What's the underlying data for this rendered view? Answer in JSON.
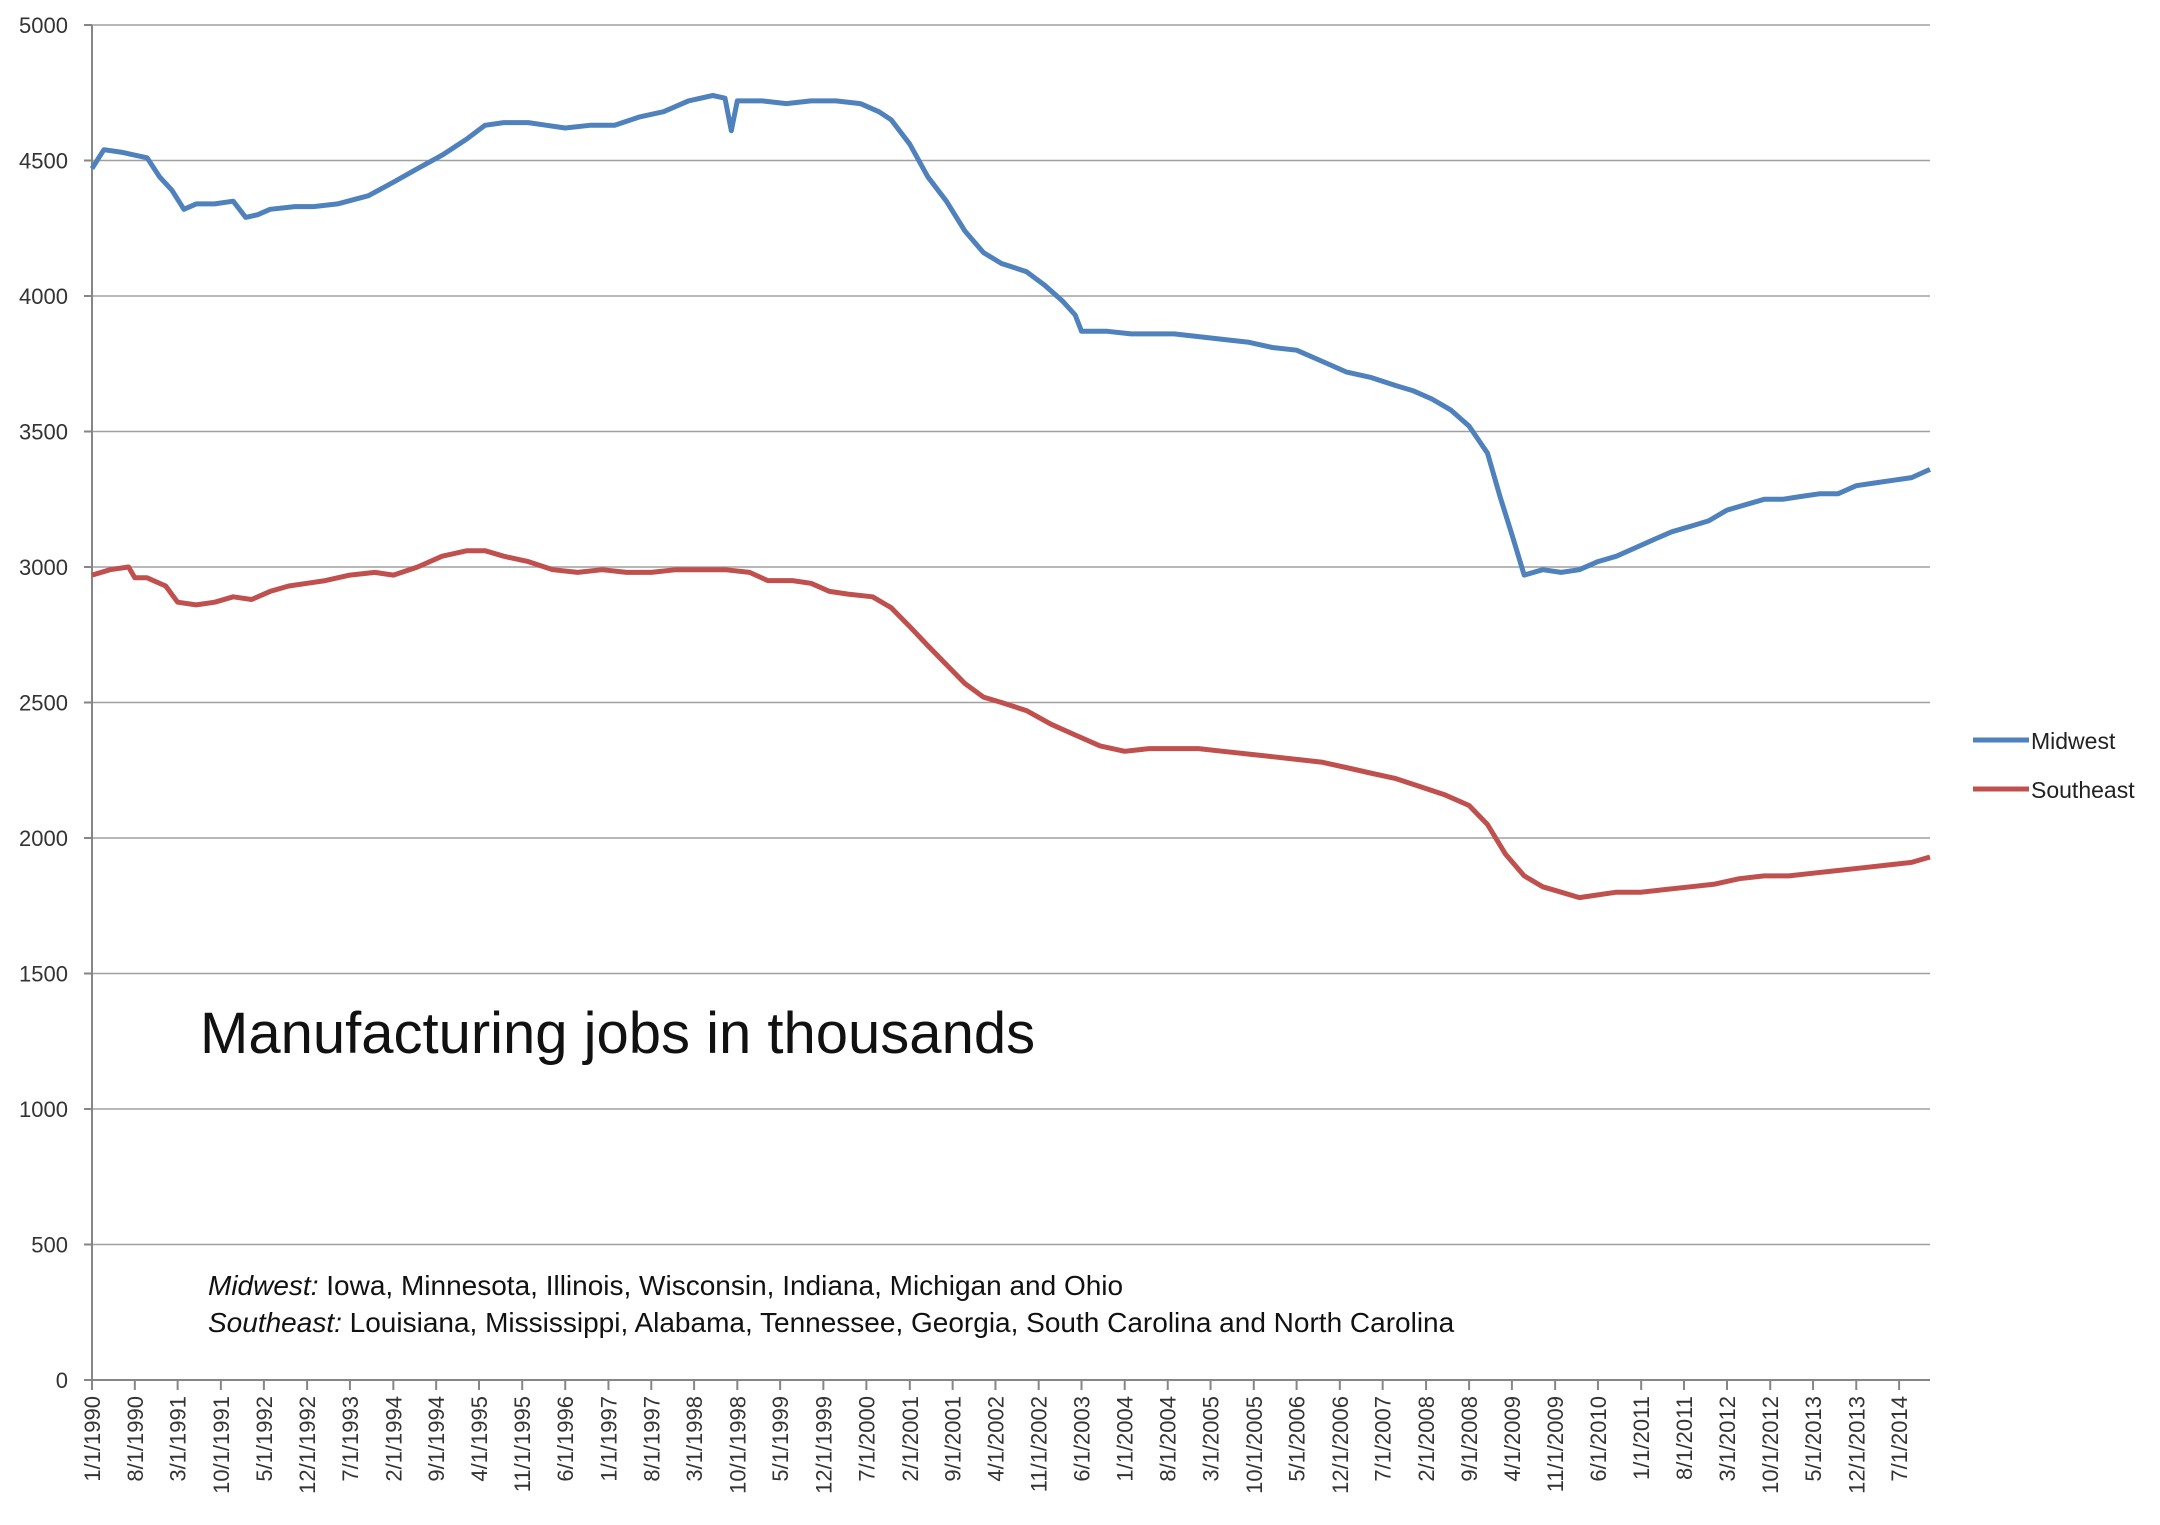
{
  "chart_data": {
    "type": "line",
    "title": "Manufacturing jobs in thousands",
    "ylim": [
      0,
      5000
    ],
    "yticks": [
      0,
      500,
      1000,
      1500,
      2000,
      2500,
      3000,
      3500,
      4000,
      4500,
      5000
    ],
    "xlim": [
      "1/1/1990",
      "12/1/2014"
    ],
    "xticks": [
      "1/1/1990",
      "8/1/1990",
      "3/1/1991",
      "10/1/1991",
      "5/1/1992",
      "12/1/1992",
      "7/1/1993",
      "2/1/1994",
      "9/1/1994",
      "4/1/1995",
      "11/1/1995",
      "6/1/1996",
      "1/1/1997",
      "8/1/1997",
      "3/1/1998",
      "10/1/1998",
      "5/1/1999",
      "12/1/1999",
      "7/1/2000",
      "2/1/2001",
      "9/1/2001",
      "4/1/2002",
      "11/1/2002",
      "6/1/2003",
      "1/1/2004",
      "8/1/2004",
      "3/1/2005",
      "10/1/2005",
      "5/1/2006",
      "12/1/2006",
      "7/1/2007",
      "2/1/2008",
      "9/1/2008",
      "4/1/2009",
      "11/1/2009",
      "6/1/2010",
      "1/1/2011",
      "8/1/2011",
      "3/1/2012",
      "10/1/2012",
      "5/1/2013",
      "12/1/2013",
      "7/1/2014"
    ],
    "grid": true,
    "legend_position": "right",
    "series": [
      {
        "name": "Midwest",
        "color": "#4f81bd",
        "points": [
          [
            "1/1/1990",
            4470
          ],
          [
            "3/1/1990",
            4540
          ],
          [
            "6/1/1990",
            4530
          ],
          [
            "10/1/1990",
            4510
          ],
          [
            "12/1/1990",
            4440
          ],
          [
            "2/1/1991",
            4390
          ],
          [
            "4/1/1991",
            4320
          ],
          [
            "6/1/1991",
            4340
          ],
          [
            "9/1/1991",
            4340
          ],
          [
            "12/1/1991",
            4350
          ],
          [
            "2/1/1992",
            4290
          ],
          [
            "4/1/1992",
            4300
          ],
          [
            "6/1/1992",
            4320
          ],
          [
            "10/1/1992",
            4330
          ],
          [
            "1/1/1993",
            4330
          ],
          [
            "5/1/1993",
            4340
          ],
          [
            "10/1/1993",
            4370
          ],
          [
            "2/1/1994",
            4420
          ],
          [
            "6/1/1994",
            4470
          ],
          [
            "10/1/1994",
            4520
          ],
          [
            "2/1/1995",
            4580
          ],
          [
            "5/1/1995",
            4630
          ],
          [
            "8/1/1995",
            4640
          ],
          [
            "12/1/1995",
            4640
          ],
          [
            "3/1/1996",
            4630
          ],
          [
            "6/1/1996",
            4620
          ],
          [
            "10/1/1996",
            4630
          ],
          [
            "2/1/1997",
            4630
          ],
          [
            "6/1/1997",
            4660
          ],
          [
            "10/1/1997",
            4680
          ],
          [
            "2/1/1998",
            4720
          ],
          [
            "6/1/1998",
            4740
          ],
          [
            "8/1/1998",
            4730
          ],
          [
            "9/1/1998",
            4610
          ],
          [
            "10/1/1998",
            4720
          ],
          [
            "2/1/1999",
            4720
          ],
          [
            "6/1/1999",
            4710
          ],
          [
            "10/1/1999",
            4720
          ],
          [
            "2/1/2000",
            4720
          ],
          [
            "6/1/2000",
            4710
          ],
          [
            "9/1/2000",
            4680
          ],
          [
            "11/1/2000",
            4650
          ],
          [
            "2/1/2001",
            4560
          ],
          [
            "5/1/2001",
            4440
          ],
          [
            "8/1/2001",
            4350
          ],
          [
            "11/1/2001",
            4240
          ],
          [
            "2/1/2002",
            4160
          ],
          [
            "5/1/2002",
            4120
          ],
          [
            "9/1/2002",
            4090
          ],
          [
            "12/1/2002",
            4040
          ],
          [
            "3/1/2003",
            3980
          ],
          [
            "5/1/2003",
            3930
          ],
          [
            "6/1/2003",
            3870
          ],
          [
            "10/1/2003",
            3870
          ],
          [
            "2/1/2004",
            3860
          ],
          [
            "6/1/2004",
            3860
          ],
          [
            "9/1/2004",
            3860
          ],
          [
            "1/1/2005",
            3850
          ],
          [
            "5/1/2005",
            3840
          ],
          [
            "9/1/2005",
            3830
          ],
          [
            "1/1/2006",
            3810
          ],
          [
            "5/1/2006",
            3800
          ],
          [
            "9/1/2006",
            3760
          ],
          [
            "1/1/2007",
            3720
          ],
          [
            "5/1/2007",
            3700
          ],
          [
            "9/1/2007",
            3670
          ],
          [
            "12/1/2007",
            3650
          ],
          [
            "3/1/2008",
            3620
          ],
          [
            "6/1/2008",
            3580
          ],
          [
            "9/1/2008",
            3520
          ],
          [
            "12/1/2008",
            3420
          ],
          [
            "2/1/2009",
            3260
          ],
          [
            "4/1/2009",
            3120
          ],
          [
            "6/1/2009",
            2970
          ],
          [
            "9/1/2009",
            2990
          ],
          [
            "12/1/2009",
            2980
          ],
          [
            "3/1/2010",
            2990
          ],
          [
            "6/1/2010",
            3020
          ],
          [
            "9/1/2010",
            3040
          ],
          [
            "12/1/2010",
            3070
          ],
          [
            "3/1/2011",
            3100
          ],
          [
            "6/1/2011",
            3130
          ],
          [
            "9/1/2011",
            3150
          ],
          [
            "12/1/2011",
            3170
          ],
          [
            "3/1/2012",
            3210
          ],
          [
            "6/1/2012",
            3230
          ],
          [
            "9/1/2012",
            3250
          ],
          [
            "12/1/2012",
            3250
          ],
          [
            "3/1/2013",
            3260
          ],
          [
            "6/1/2013",
            3270
          ],
          [
            "9/1/2013",
            3270
          ],
          [
            "12/1/2013",
            3300
          ],
          [
            "3/1/2014",
            3310
          ],
          [
            "6/1/2014",
            3320
          ],
          [
            "9/1/2014",
            3330
          ],
          [
            "12/1/2014",
            3360
          ]
        ]
      },
      {
        "name": "Southeast",
        "color": "#c0504d",
        "points": [
          [
            "1/1/1990",
            2970
          ],
          [
            "4/1/1990",
            2990
          ],
          [
            "7/1/1990",
            3000
          ],
          [
            "8/1/1990",
            2960
          ],
          [
            "10/1/1990",
            2960
          ],
          [
            "1/1/1991",
            2930
          ],
          [
            "3/1/1991",
            2870
          ],
          [
            "6/1/1991",
            2860
          ],
          [
            "9/1/1991",
            2870
          ],
          [
            "12/1/1991",
            2890
          ],
          [
            "3/1/1992",
            2880
          ],
          [
            "6/1/1992",
            2910
          ],
          [
            "9/1/1992",
            2930
          ],
          [
            "12/1/1992",
            2940
          ],
          [
            "3/1/1993",
            2950
          ],
          [
            "7/1/1993",
            2970
          ],
          [
            "11/1/1993",
            2980
          ],
          [
            "2/1/1994",
            2970
          ],
          [
            "6/1/1994",
            3000
          ],
          [
            "10/1/1994",
            3040
          ],
          [
            "2/1/1995",
            3060
          ],
          [
            "5/1/1995",
            3060
          ],
          [
            "8/1/1995",
            3040
          ],
          [
            "12/1/1995",
            3020
          ],
          [
            "4/1/1996",
            2990
          ],
          [
            "8/1/1996",
            2980
          ],
          [
            "12/1/1996",
            2990
          ],
          [
            "4/1/1997",
            2980
          ],
          [
            "8/1/1997",
            2980
          ],
          [
            "12/1/1997",
            2990
          ],
          [
            "4/1/1998",
            2990
          ],
          [
            "8/1/1998",
            2990
          ],
          [
            "12/1/1998",
            2980
          ],
          [
            "3/1/1999",
            2950
          ],
          [
            "7/1/1999",
            2950
          ],
          [
            "10/1/1999",
            2940
          ],
          [
            "1/1/2000",
            2910
          ],
          [
            "4/1/2000",
            2900
          ],
          [
            "8/1/2000",
            2890
          ],
          [
            "11/1/2000",
            2850
          ],
          [
            "2/1/2001",
            2780
          ],
          [
            "5/1/2001",
            2710
          ],
          [
            "8/1/2001",
            2640
          ],
          [
            "11/1/2001",
            2570
          ],
          [
            "2/1/2002",
            2520
          ],
          [
            "5/1/2002",
            2500
          ],
          [
            "9/1/2002",
            2470
          ],
          [
            "1/1/2003",
            2420
          ],
          [
            "5/1/2003",
            2380
          ],
          [
            "9/1/2003",
            2340
          ],
          [
            "1/1/2004",
            2320
          ],
          [
            "5/1/2004",
            2330
          ],
          [
            "9/1/2004",
            2330
          ],
          [
            "1/1/2005",
            2330
          ],
          [
            "5/1/2005",
            2320
          ],
          [
            "9/1/2005",
            2310
          ],
          [
            "1/1/2006",
            2300
          ],
          [
            "5/1/2006",
            2290
          ],
          [
            "9/1/2006",
            2280
          ],
          [
            "1/1/2007",
            2260
          ],
          [
            "5/1/2007",
            2240
          ],
          [
            "9/1/2007",
            2220
          ],
          [
            "1/1/2008",
            2190
          ],
          [
            "5/1/2008",
            2160
          ],
          [
            "9/1/2008",
            2120
          ],
          [
            "12/1/2008",
            2050
          ],
          [
            "3/1/2009",
            1940
          ],
          [
            "6/1/2009",
            1860
          ],
          [
            "9/1/2009",
            1820
          ],
          [
            "12/1/2009",
            1800
          ],
          [
            "3/1/2010",
            1780
          ],
          [
            "6/1/2010",
            1790
          ],
          [
            "9/1/2010",
            1800
          ],
          [
            "1/1/2011",
            1800
          ],
          [
            "5/1/2011",
            1810
          ],
          [
            "9/1/2011",
            1820
          ],
          [
            "1/1/2012",
            1830
          ],
          [
            "5/1/2012",
            1850
          ],
          [
            "9/1/2012",
            1860
          ],
          [
            "1/1/2013",
            1860
          ],
          [
            "5/1/2013",
            1870
          ],
          [
            "9/1/2013",
            1880
          ],
          [
            "1/1/2014",
            1890
          ],
          [
            "5/1/2014",
            1900
          ],
          [
            "9/1/2014",
            1910
          ],
          [
            "12/1/2014",
            1930
          ]
        ]
      }
    ]
  },
  "notes": [
    {
      "label": "Midwest:",
      "text": " Iowa, Minnesota, Illinois, Wisconsin, Indiana, Michigan and Ohio"
    },
    {
      "label": "Southeast:",
      "text": " Louisiana, Mississippi, Alabama, Tennessee, Georgia, South Carolina and North Carolina"
    }
  ]
}
